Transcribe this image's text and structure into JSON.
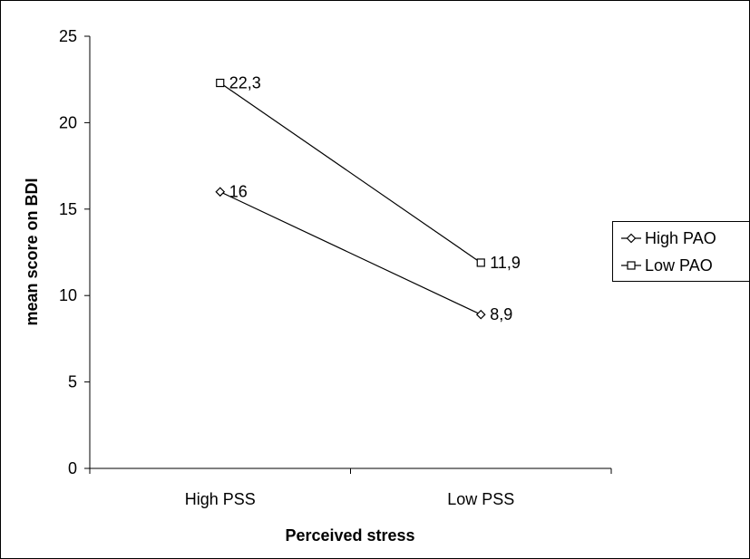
{
  "chart_data": {
    "type": "line",
    "categories": [
      "High PSS",
      "Low PSS"
    ],
    "series": [
      {
        "name": "High PAO",
        "values": [
          16,
          8.9
        ],
        "labels": [
          "16",
          "8,9"
        ],
        "marker": "diamond"
      },
      {
        "name": "Low PAO",
        "values": [
          22.3,
          11.9
        ],
        "labels": [
          "22,3",
          "11,9"
        ],
        "marker": "square"
      }
    ],
    "xlabel": "Perceived stress",
    "ylabel": "mean score on BDI",
    "ylim": [
      0,
      25
    ],
    "yticks": [
      0,
      5,
      10,
      15,
      20,
      25
    ],
    "grid": false,
    "legend_position": "right",
    "colors": {
      "line": "#000000",
      "marker_fill": "#ffffff",
      "background": "#ffffff"
    }
  }
}
